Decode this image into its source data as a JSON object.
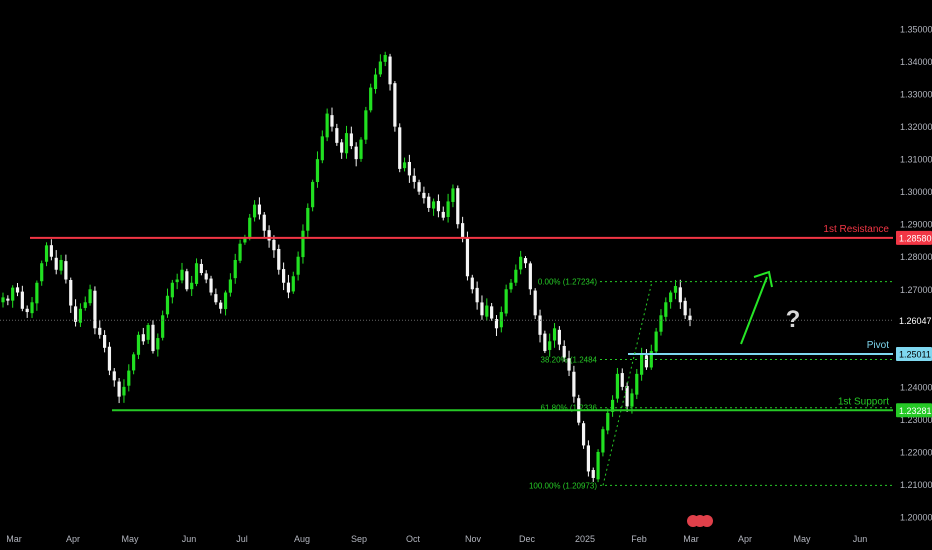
{
  "chart_data": {
    "type": "candlestick",
    "x_tick_labels": [
      "Mar",
      "Apr",
      "May",
      "Jun",
      "Jul",
      "Aug",
      "Sep",
      "Oct",
      "Nov",
      "Dec",
      "2025",
      "Feb",
      "Mar",
      "Apr",
      "May",
      "Jun"
    ],
    "y_tick_labels": [
      "1.35000",
      "1.34000",
      "1.33000",
      "1.32000",
      "1.31000",
      "1.30000",
      "1.29000",
      "1.28000",
      "1.27000",
      "1.25000",
      "1.24000",
      "1.23000",
      "1.22000",
      "1.21000",
      "1.20000"
    ],
    "ylim": [
      1.1965,
      1.3553
    ],
    "current_price": {
      "value": 1.26047,
      "label": "1.26047"
    },
    "levels": [
      {
        "name": "1st Resistance",
        "value": 1.2858,
        "price_label": "1.28580",
        "color": "#f23645",
        "style": "solid"
      },
      {
        "name": "Pivot",
        "value": 1.25011,
        "price_label": "1.25011",
        "color": "#7fd8f0",
        "style": "solid"
      },
      {
        "name": "1st Support",
        "value": 1.23281,
        "price_label": "1.23281",
        "color": "#26c926",
        "style": "solid"
      }
    ],
    "fibonacci": [
      {
        "label": "0.00% (1.27234)",
        "value": 1.27234
      },
      {
        "label": "38.20% (1.2484",
        "value": 1.2484
      },
      {
        "label": "61.80% (1.2336",
        "value": 1.2336
      },
      {
        "label": "100.00% (1.20973)",
        "value": 1.20973
      }
    ],
    "annotations": [
      {
        "type": "arrow",
        "direction": "up",
        "color": "#26e626"
      },
      {
        "type": "text",
        "text": "?",
        "color": "#d8d8d8"
      }
    ],
    "candles_close_approx": [
      1.2675,
      1.2665,
      1.2705,
      1.269,
      1.264,
      1.263,
      1.266,
      1.272,
      1.278,
      1.2835,
      1.28,
      1.276,
      1.279,
      1.273,
      1.265,
      1.26,
      1.264,
      1.266,
      1.27,
      1.258,
      1.256,
      1.252,
      1.245,
      1.242,
      1.237,
      1.24,
      1.245,
      1.25,
      1.256,
      1.254,
      1.259,
      1.251,
      1.255,
      1.262,
      1.268,
      1.272,
      1.273,
      1.276,
      1.27,
      1.272,
      1.278,
      1.275,
      1.273,
      1.269,
      1.266,
      1.264,
      1.269,
      1.273,
      1.279,
      1.284,
      1.286,
      1.292,
      1.296,
      1.293,
      1.288,
      1.285,
      1.282,
      1.276,
      1.272,
      1.269,
      1.274,
      1.28,
      1.288,
      1.295,
      1.303,
      1.31,
      1.317,
      1.324,
      1.32,
      1.315,
      1.312,
      1.318,
      1.314,
      1.31,
      1.316,
      1.325,
      1.332,
      1.336,
      1.34,
      1.342,
      1.333,
      1.32,
      1.307,
      1.309,
      1.305,
      1.303,
      1.3,
      1.298,
      1.295,
      1.297,
      1.294,
      1.292,
      1.297,
      1.301,
      1.29,
      1.286,
      1.274,
      1.27,
      1.266,
      1.262,
      1.265,
      1.261,
      1.258,
      1.263,
      1.27,
      1.272,
      1.276,
      1.28,
      1.278,
      1.27,
      1.262,
      1.256,
      1.251,
      1.254,
      1.258,
      1.253,
      1.249,
      1.245,
      1.237,
      1.229,
      1.222,
      1.214,
      1.212,
      1.22,
      1.227,
      1.232,
      1.236,
      1.244,
      1.24,
      1.234,
      1.238,
      1.244,
      1.25,
      1.246,
      1.251,
      1.257,
      1.262,
      1.266,
      1.269,
      1.271,
      1.266,
      1.262,
      1.2605
    ]
  },
  "tradingview_logo": "tv-logo"
}
